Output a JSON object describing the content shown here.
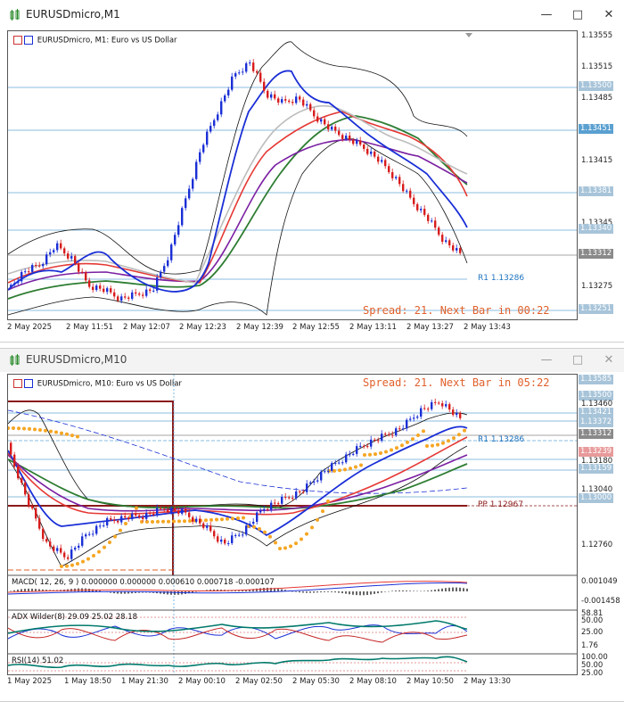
{
  "window1": {
    "title": "EURUSDmicro,M1",
    "legend": "EURUSDmicro, M1:  Euro vs US Dollar",
    "spread": "Spread: 21. Next Bar in 00:22",
    "r1_label": "R1 1.13286",
    "y_labels": [
      "1.13555",
      "1.13515",
      "1.13485",
      "1.13415",
      "1.13345",
      "1.13275"
    ],
    "y_boxes": [
      "1.13500",
      "1.13451",
      "1.13381",
      "1.13340",
      "1.13312",
      "1.13251"
    ],
    "x_labels": [
      "2 May 2025",
      "2 May 11:51",
      "2 May 12:07",
      "2 May 12:23",
      "2 May 12:39",
      "2 May 12:55",
      "2 May 13:11",
      "2 May 13:27",
      "2 May 13:43"
    ],
    "buttons": {
      "minimize": "—",
      "maximize": "□",
      "close": "✕"
    }
  },
  "window2": {
    "title": "EURUSDmicro,M10",
    "legend": "EURUSDmicro, M10:  Euro vs US Dollar",
    "spread": "Spread: 21. Next Bar in 05:22",
    "r1_label": "R1 1.13286",
    "pp_label": "PP 1.12967",
    "y_labels": [
      "1.13460",
      "1.13180",
      "1.13040",
      "1.12760"
    ],
    "y_boxes": [
      "1.13585",
      "1.13500",
      "1.13421",
      "1.13372",
      "1.13312",
      "1.13239",
      "1.13159",
      "1.13000"
    ],
    "macd_label": "MACD( 12, 26, 9 ) 0.000000 0.000000 0.000610 0.000718 -0.000107",
    "macd_y": [
      "0.001049",
      "-0.001458"
    ],
    "adx_label": "ADX Wilder(8) 29.09 25.02 28.18",
    "adx_y": [
      "58.81",
      "50.00",
      "25.00",
      "1.76"
    ],
    "rsi_label": "RSI(14) 51.02",
    "rsi_y": [
      "100.00",
      "50.00",
      "25.00"
    ],
    "x_labels": [
      "1 May 2025",
      "1 May 18:50",
      "1 May 21:30",
      "2 May 00:10",
      "2 May 02:50",
      "2 May 05:30",
      "2 May 08:10",
      "2 May 10:50",
      "2 May 13:30"
    ],
    "buttons": {
      "minimize": "—",
      "maximize": "□",
      "close": "✕"
    }
  },
  "colors": {
    "accent": "#e0602b",
    "bull": "#1a2fd6",
    "bear": "#d81c1c",
    "ma_red": "#e53935",
    "ma_purple": "#7b1fa2",
    "ma_green": "#2e7d32",
    "band": "#111111",
    "level": "#64a8d8"
  }
}
